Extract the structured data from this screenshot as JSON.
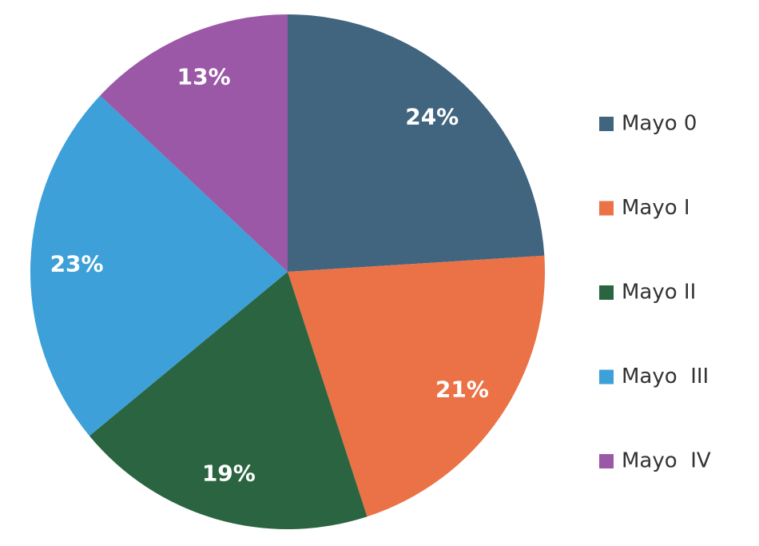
{
  "chart_data": {
    "type": "pie",
    "categories": [
      "Mayo 0",
      "Mayo I",
      "Mayo II",
      "Mayo  III",
      "Mayo  IV"
    ],
    "values": [
      24,
      21,
      19,
      23,
      13
    ],
    "value_labels": [
      "24%",
      "21%",
      "19%",
      "23%",
      "13%"
    ],
    "colors": [
      "#41647f",
      "#ea7246",
      "#2a6441",
      "#3da0d8",
      "#9b58a6"
    ],
    "legend": "right"
  }
}
